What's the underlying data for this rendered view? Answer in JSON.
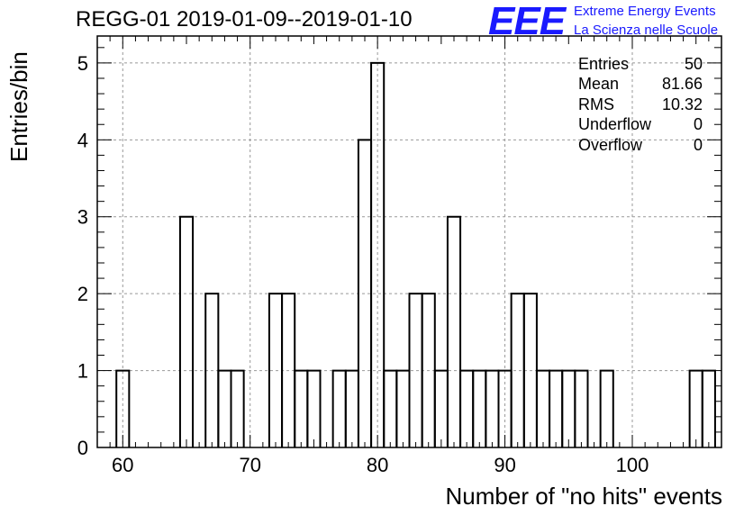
{
  "title": "REGG-01 2019-01-09--2019-01-10",
  "logo": {
    "mark": "EEE",
    "line1": "Extreme Energy Events",
    "line2": "La Scienza nelle Scuole",
    "color": "#1a1aff"
  },
  "stats": [
    {
      "label": "Entries",
      "value": "50"
    },
    {
      "label": "Mean",
      "value": "81.66"
    },
    {
      "label": "RMS",
      "value": "10.32"
    },
    {
      "label": "Underflow",
      "value": "0"
    },
    {
      "label": "Overflow",
      "value": "0"
    }
  ],
  "chart_data": {
    "type": "bar",
    "subtype": "histogram",
    "title": "REGG-01 2019-01-09--2019-01-10",
    "xlabel": "Number of \"no hits\" events",
    "ylabel": "Entries/bin",
    "xlim": [
      58,
      107
    ],
    "ylim": [
      0,
      5.35
    ],
    "bin_width": 1,
    "x_ticks": [
      60,
      70,
      80,
      90,
      100
    ],
    "y_ticks": [
      0,
      1,
      2,
      3,
      4,
      5
    ],
    "grid": true,
    "bins": [
      {
        "x": 60,
        "count": 1
      },
      {
        "x": 65,
        "count": 3
      },
      {
        "x": 67,
        "count": 2
      },
      {
        "x": 68,
        "count": 1
      },
      {
        "x": 69,
        "count": 1
      },
      {
        "x": 72,
        "count": 2
      },
      {
        "x": 73,
        "count": 2
      },
      {
        "x": 74,
        "count": 1
      },
      {
        "x": 75,
        "count": 1
      },
      {
        "x": 77,
        "count": 1
      },
      {
        "x": 78,
        "count": 1
      },
      {
        "x": 79,
        "count": 4
      },
      {
        "x": 80,
        "count": 5
      },
      {
        "x": 81,
        "count": 1
      },
      {
        "x": 82,
        "count": 1
      },
      {
        "x": 83,
        "count": 2
      },
      {
        "x": 84,
        "count": 2
      },
      {
        "x": 85,
        "count": 1
      },
      {
        "x": 86,
        "count": 3
      },
      {
        "x": 87,
        "count": 1
      },
      {
        "x": 88,
        "count": 1
      },
      {
        "x": 89,
        "count": 1
      },
      {
        "x": 90,
        "count": 1
      },
      {
        "x": 91,
        "count": 2
      },
      {
        "x": 92,
        "count": 2
      },
      {
        "x": 93,
        "count": 1
      },
      {
        "x": 94,
        "count": 1
      },
      {
        "x": 95,
        "count": 1
      },
      {
        "x": 96,
        "count": 1
      },
      {
        "x": 98,
        "count": 1
      },
      {
        "x": 105,
        "count": 1
      },
      {
        "x": 106,
        "count": 1
      }
    ]
  }
}
